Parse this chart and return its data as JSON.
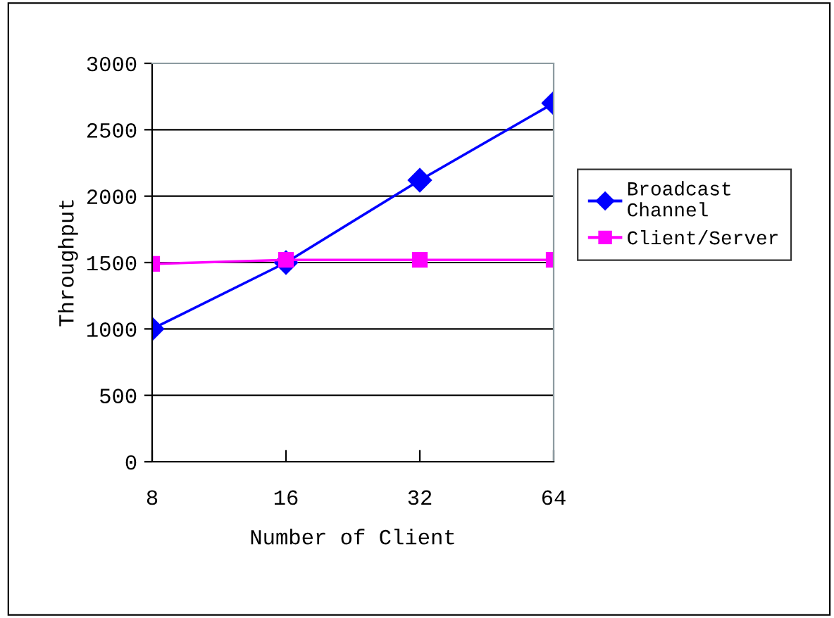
{
  "chart_data": {
    "type": "line",
    "xlabel": "Number of Client",
    "ylabel": "Throughput",
    "categories": [
      "8",
      "16",
      "32",
      "64"
    ],
    "series": [
      {
        "name": "Broadcast\nChannel",
        "color": "#0000ff",
        "marker": "diamond",
        "values": [
          1000,
          1500,
          2120,
          2700
        ]
      },
      {
        "name": "Client/Server",
        "color": "#ff00ff",
        "marker": "square",
        "values": [
          1490,
          1520,
          1520,
          1520
        ]
      }
    ],
    "ylim": [
      0,
      3000
    ],
    "yticks": [
      0,
      500,
      1000,
      1500,
      2000,
      2500,
      3000
    ],
    "grid": "y",
    "legend": "right",
    "line_style": "solid"
  }
}
